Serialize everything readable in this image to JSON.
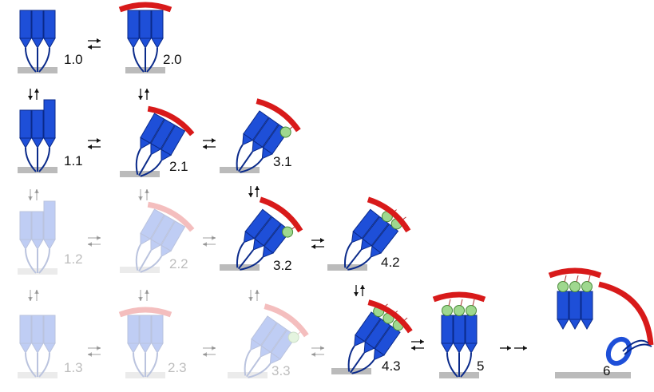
{
  "nodes": [
    {
      "label": "1.0"
    },
    {
      "label": "2.0"
    },
    {
      "label": "1.1"
    },
    {
      "label": "2.1"
    },
    {
      "label": "3.1"
    },
    {
      "label": "1.2"
    },
    {
      "label": "2.2"
    },
    {
      "label": "3.2"
    },
    {
      "label": "4.2"
    },
    {
      "label": "1.3"
    },
    {
      "label": "2.3"
    },
    {
      "label": "3.3"
    },
    {
      "label": "4.3"
    },
    {
      "label": "5"
    },
    {
      "label": "6"
    }
  ]
}
